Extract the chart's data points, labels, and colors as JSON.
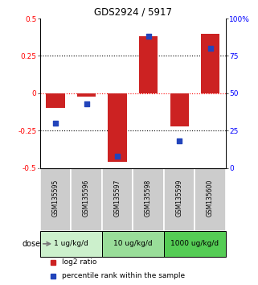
{
  "title": "GDS2924 / 5917",
  "samples": [
    "GSM135595",
    "GSM135596",
    "GSM135597",
    "GSM135598",
    "GSM135599",
    "GSM135600"
  ],
  "log2_ratio": [
    -0.1,
    -0.02,
    -0.46,
    0.38,
    -0.22,
    0.4
  ],
  "percentile_rank": [
    30,
    43,
    8,
    88,
    18,
    80
  ],
  "doses": [
    {
      "label": "1 ug/kg/d",
      "samples": [
        0,
        1
      ],
      "color": "#ccf0cc"
    },
    {
      "label": "10 ug/kg/d",
      "samples": [
        2,
        3
      ],
      "color": "#99dd99"
    },
    {
      "label": "1000 ug/kg/d",
      "samples": [
        4,
        5
      ],
      "color": "#55cc55"
    }
  ],
  "bar_color": "#cc2222",
  "dot_color": "#2244bb",
  "ylim_left": [
    -0.5,
    0.5
  ],
  "ylim_right": [
    0,
    100
  ],
  "yticks_left": [
    -0.5,
    -0.25,
    0,
    0.25,
    0.5
  ],
  "yticks_right": [
    0,
    25,
    50,
    75,
    100
  ],
  "hlines_black": [
    -0.25,
    0.25
  ],
  "hline_red": 0,
  "background_color": "#ffffff",
  "sample_bg_color": "#cccccc",
  "dose_label": "dose"
}
